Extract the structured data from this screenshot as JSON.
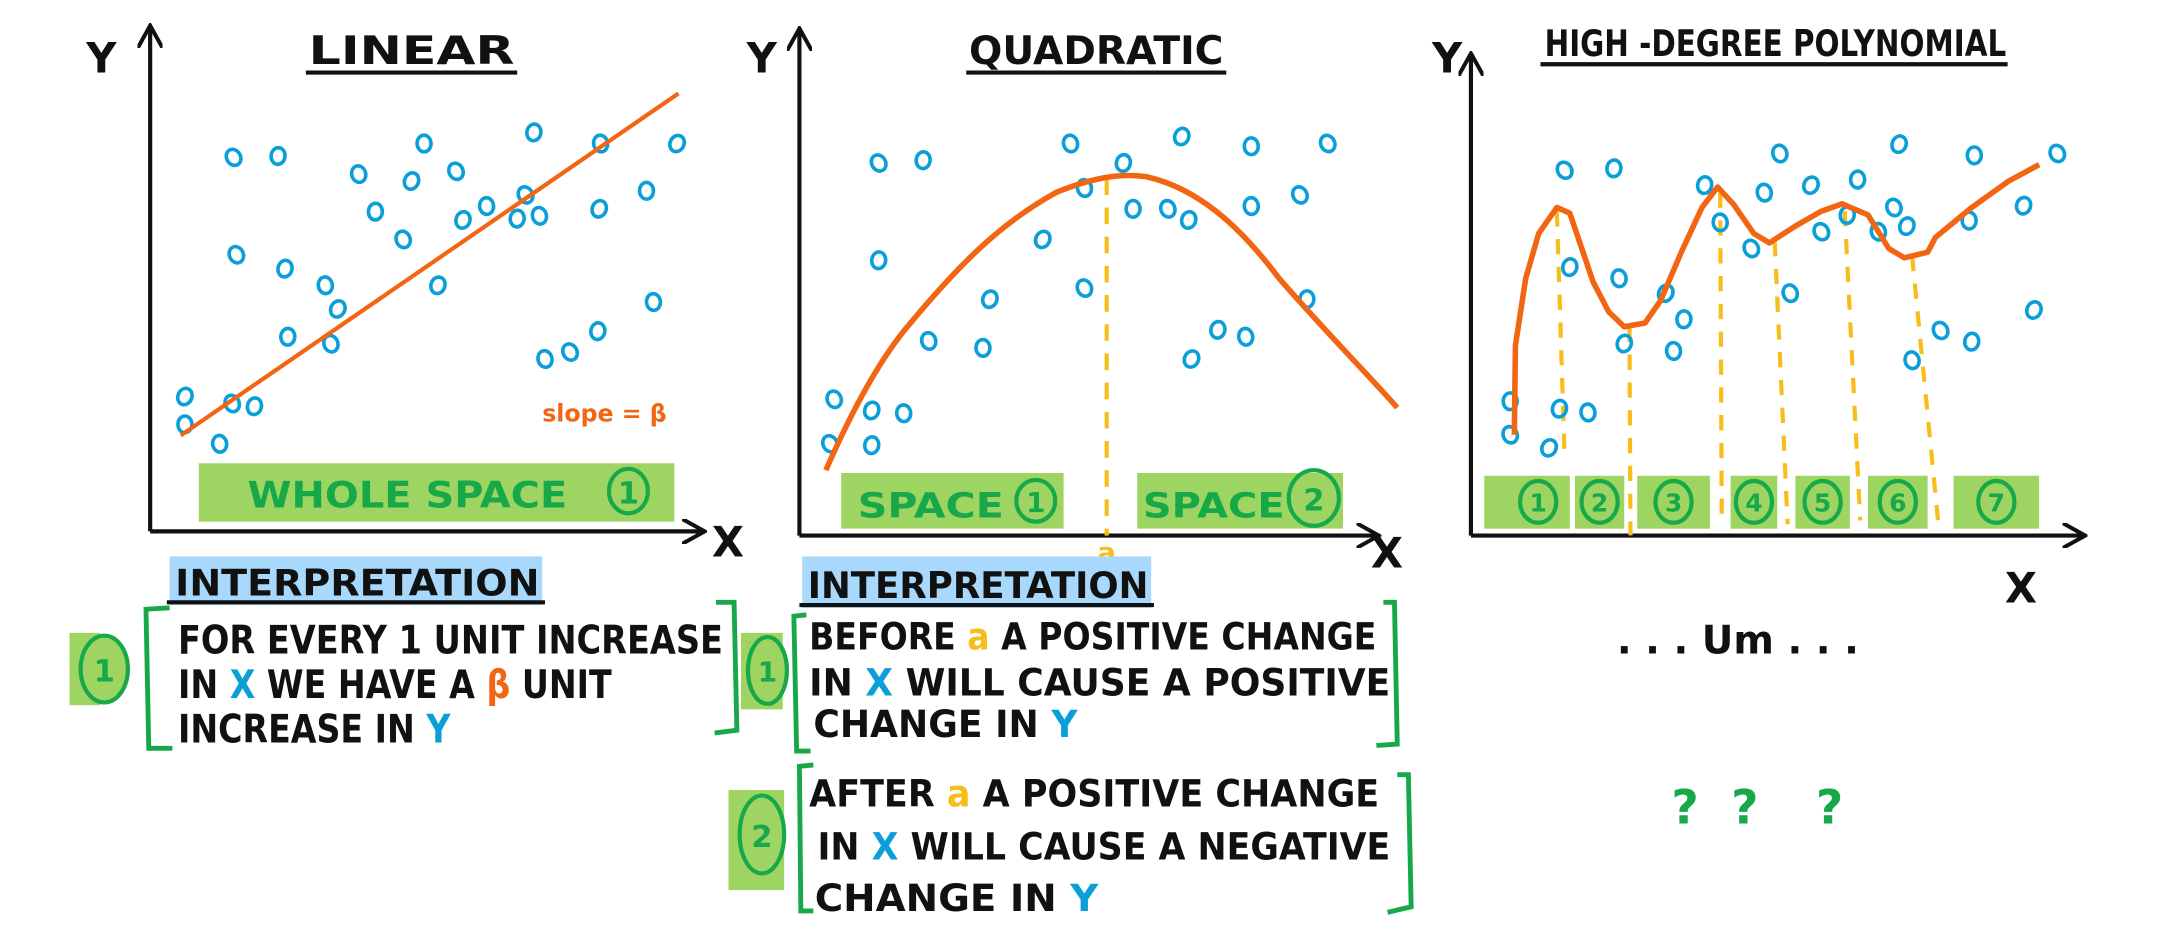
{
  "colors": {
    "points": "#0a9fd8",
    "curve": "#f26513",
    "split": "#f7bd1b",
    "band": "#9ed562",
    "badge": "#17a84a",
    "highlight": "#a8d8fb",
    "ink": "#111111"
  },
  "linear": {
    "title": "LINEAR",
    "y_label": "Y",
    "x_label": "X",
    "slope_label": "slope = β",
    "band_label": "WHOLE SPACE",
    "band_number": "1",
    "interp_heading": "INTERPRETATION",
    "badge": "1",
    "lines": [
      [
        "FOR EVERY 1 UNIT INCREASE"
      ],
      [
        "IN ",
        "X",
        " WE HAVE A ",
        "β",
        " UNIT"
      ],
      [
        "INCREASE IN ",
        "Y"
      ]
    ]
  },
  "quadratic": {
    "title": "QUADRATIC",
    "y_label": "Y",
    "x_label": "X",
    "split_label": "a",
    "bands": [
      {
        "label": "SPACE",
        "number": "1"
      },
      {
        "label": "SPACE",
        "number": "2"
      }
    ],
    "interp_heading": "INTERPRETATION",
    "items": [
      {
        "badge": "1",
        "lines": [
          [
            "BEFORE ",
            "a",
            " A POSITIVE CHANGE"
          ],
          [
            "IN ",
            "X",
            " WILL CAUSE A POSITIVE"
          ],
          [
            "CHANGE IN ",
            "Y"
          ]
        ]
      },
      {
        "badge": "2",
        "lines": [
          [
            "AFTER ",
            "a",
            " A POSITIVE CHANGE"
          ],
          [
            "IN ",
            "X",
            " WILL CAUSE A NEGATIVE"
          ],
          [
            "CHANGE IN ",
            "Y"
          ]
        ]
      }
    ]
  },
  "polynomial": {
    "title": "HIGH -DEGREE POLYNOMIAL",
    "y_label": "Y",
    "x_label": "X",
    "bands": [
      "1",
      "2",
      "3",
      "4",
      "5",
      "6",
      "7"
    ],
    "um": ". . . Um . . .",
    "questions": [
      "?",
      "?",
      "?"
    ]
  }
}
